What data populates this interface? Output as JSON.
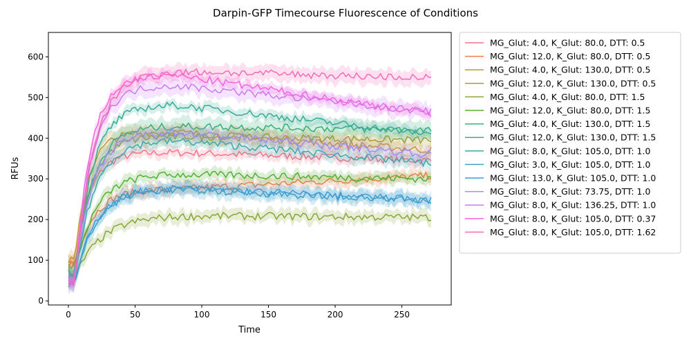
{
  "chart_data": {
    "type": "line",
    "title": "Darpin-GFP Timecourse Fluorescence of Conditions",
    "xlabel": "Time",
    "ylabel": "RFUs",
    "xlim": [
      -15,
      287
    ],
    "ylim": [
      -10,
      660
    ],
    "xticks": [
      0,
      50,
      100,
      150,
      200,
      250
    ],
    "yticks": [
      0,
      100,
      200,
      300,
      400,
      500,
      600
    ],
    "grid": false,
    "legend_position": "outside-right",
    "series": [
      {
        "name": "MG_Glut: 4.0, K_Glut: 80.0, DTT: 0.5",
        "color": "#f77189",
        "start": 90,
        "plateau": 365,
        "end": 345,
        "rate": 0.09
      },
      {
        "name": "MG_Glut: 12.0, K_Glut: 80.0, DTT: 0.5",
        "color": "#f27c45",
        "start": 95,
        "plateau": 275,
        "end": 308,
        "rate": 0.07
      },
      {
        "name": "MG_Glut: 4.0, K_Glut: 130.0, DTT: 0.5",
        "color": "#c99332",
        "start": 100,
        "plateau": 415,
        "end": 370,
        "rate": 0.1
      },
      {
        "name": "MG_Glut: 12.0, K_Glut: 130.0, DTT: 0.5",
        "color": "#a39d32",
        "start": 85,
        "plateau": 405,
        "end": 395,
        "rate": 0.08
      },
      {
        "name": "MG_Glut: 4.0, K_Glut: 80.0, DTT: 1.5",
        "color": "#87a631",
        "start": 60,
        "plateau": 210,
        "end": 205,
        "rate": 0.05
      },
      {
        "name": "MG_Glut: 12.0, K_Glut: 80.0, DTT: 1.5",
        "color": "#4fb031",
        "start": 70,
        "plateau": 312,
        "end": 300,
        "rate": 0.065
      },
      {
        "name": "MG_Glut: 4.0, K_Glut: 130.0, DTT: 1.5",
        "color": "#34ae78",
        "start": 65,
        "plateau": 430,
        "end": 420,
        "rate": 0.075
      },
      {
        "name": "MG_Glut: 12.0, K_Glut: 130.0, DTT: 1.5",
        "color": "#36ab94",
        "start": 70,
        "plateau": 482,
        "end": 410,
        "rate": 0.075
      },
      {
        "name": "MG_Glut: 8.0, K_Glut: 105.0, DTT: 1.0",
        "color": "#38a9a8",
        "start": 55,
        "plateau": 395,
        "end": 338,
        "rate": 0.07
      },
      {
        "name": "MG_Glut: 3.0, K_Glut: 105.0, DTT: 1.0",
        "color": "#3ba3bc",
        "start": 40,
        "plateau": 275,
        "end": 245,
        "rate": 0.065
      },
      {
        "name": "MG_Glut: 13.0, K_Glut: 105.0, DTT: 1.0",
        "color": "#3e9bd9",
        "start": 45,
        "plateau": 278,
        "end": 248,
        "rate": 0.065
      },
      {
        "name": "MG_Glut: 8.0, K_Glut: 73.75, DTT: 1.0",
        "color": "#a08cf4",
        "start": 55,
        "plateau": 415,
        "end": 360,
        "rate": 0.075
      },
      {
        "name": "MG_Glut: 8.0, K_Glut: 136.25, DTT: 1.0",
        "color": "#cc79f4",
        "start": 50,
        "plateau": 530,
        "end": 465,
        "rate": 0.08
      },
      {
        "name": "MG_Glut: 8.0, K_Glut: 105.0, DTT: 0.37",
        "color": "#f462e1",
        "start": 45,
        "plateau": 555,
        "end": 460,
        "rate": 0.085
      },
      {
        "name": "MG_Glut: 8.0, K_Glut: 105.0, DTT: 1.62",
        "color": "#f56ab8",
        "start": 45,
        "plateau": 565,
        "end": 548,
        "rate": 0.07
      }
    ]
  }
}
